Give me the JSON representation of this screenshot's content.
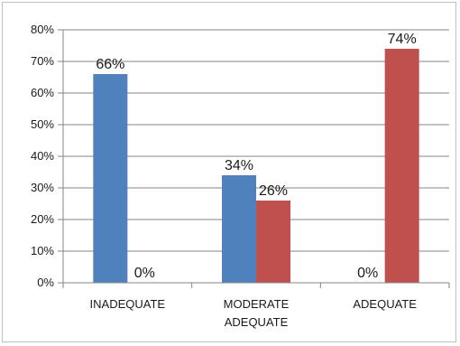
{
  "chart_data": {
    "type": "bar",
    "title": "",
    "xlabel": "",
    "ylabel": "",
    "ylim": [
      0,
      80
    ],
    "yticks": [
      "0%",
      "10%",
      "20%",
      "30%",
      "40%",
      "50%",
      "60%",
      "70%",
      "80%"
    ],
    "yticks_values": [
      0,
      10,
      20,
      30,
      40,
      50,
      60,
      70,
      80
    ],
    "grid": true,
    "legend": "none",
    "categories": [
      [
        "INADEQUATE"
      ],
      [
        "MODERATE",
        "ADEQUATE"
      ],
      [
        "ADEQUATE"
      ]
    ],
    "series": [
      {
        "color": "#4f81bd",
        "values": [
          66,
          34,
          0
        ],
        "labels": [
          "66%",
          "34%",
          "0%"
        ]
      },
      {
        "color": "#c0504d",
        "values": [
          0,
          26,
          74
        ],
        "labels": [
          "0%",
          "26%",
          "74%"
        ]
      }
    ]
  }
}
